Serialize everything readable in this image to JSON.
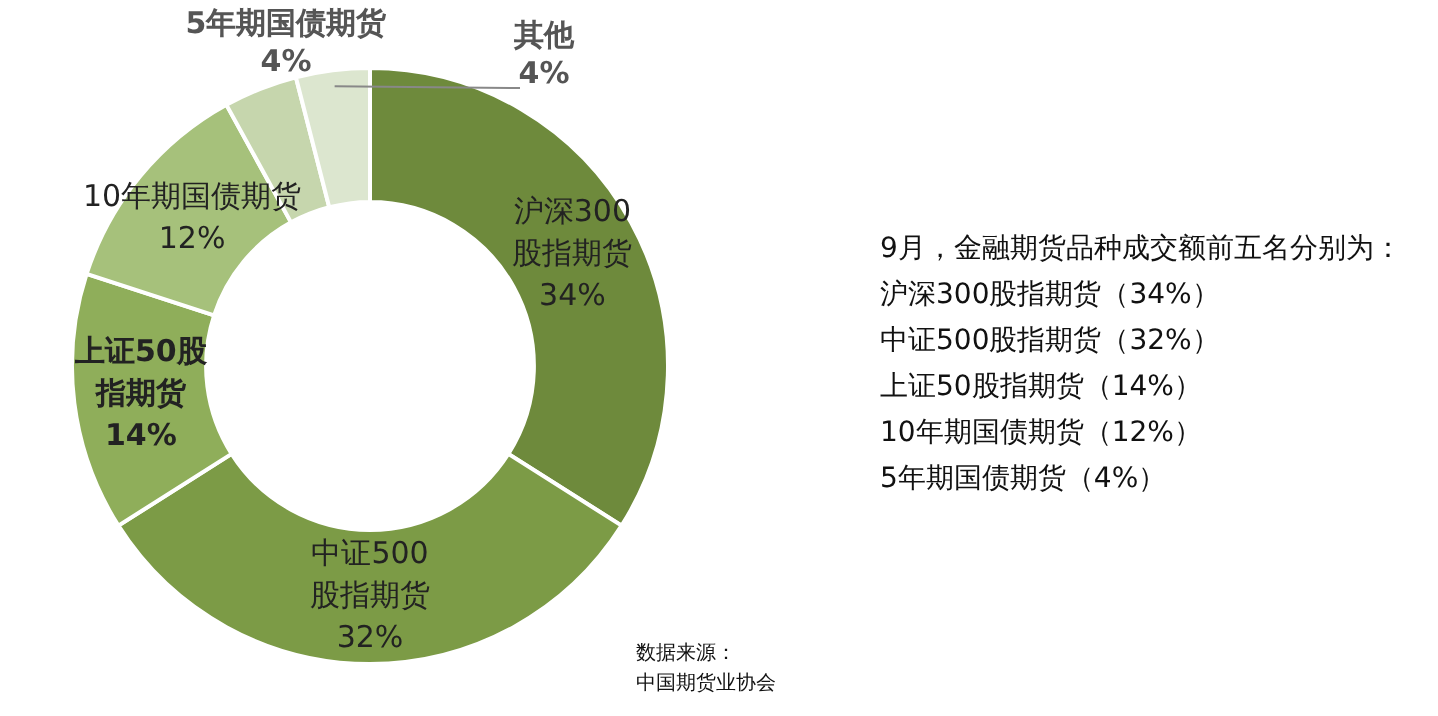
{
  "chart_data": {
    "type": "donut",
    "categories": [
      "沪深300股指期货",
      "中证500股指期货",
      "上证50股指期货",
      "10年期国债期货",
      "5年期国债期货",
      "其他"
    ],
    "values": [
      34,
      32,
      14,
      12,
      4,
      4
    ],
    "colors": [
      "#6e8a3c",
      "#7c9b46",
      "#8fae5a",
      "#a6c17b",
      "#c6d6ad",
      "#dce6cf"
    ],
    "value_labels": [
      "34%",
      "32%",
      "14%",
      "12%",
      "4%",
      "4%"
    ],
    "legend": false,
    "annotations": [
      "9月，金融期货品种成交额前五名分别为：",
      "沪深300股指期货（34%）",
      "中证500股指期货（32%）",
      "上证50股指期货（14%）",
      "10年期国债期货（12%）",
      "5年期国债期货（4%）",
      "数据来源：",
      "中国期货业协会"
    ]
  }
}
